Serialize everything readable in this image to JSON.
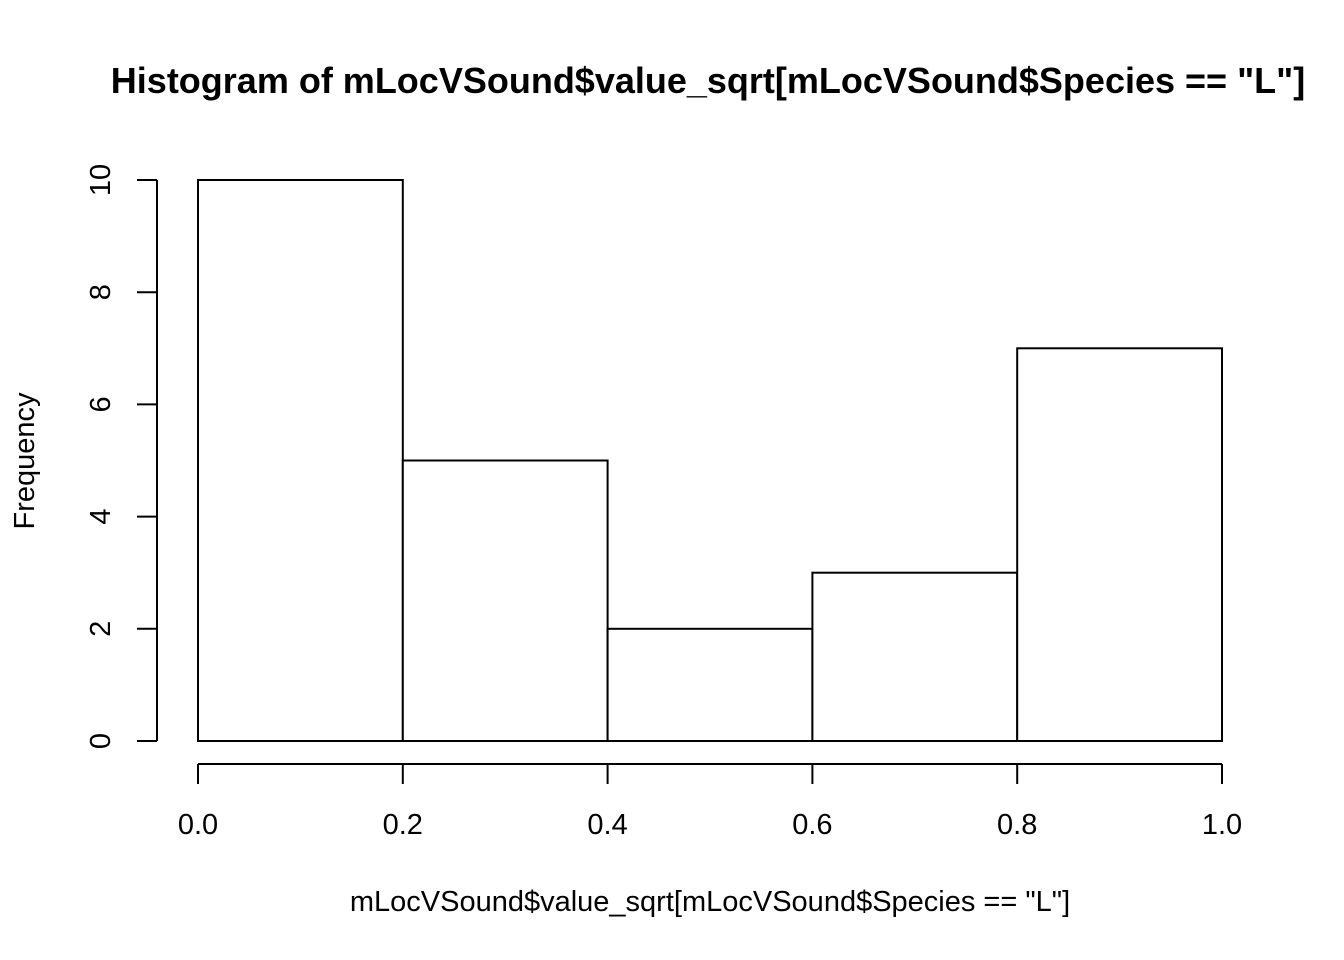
{
  "chart_data": {
    "type": "bar",
    "title": "Histogram of mLocVSound$value_sqrt[mLocVSound$Species == \"L\"]",
    "xlabel": "mLocVSound$value_sqrt[mLocVSound$Species == \"L\"]",
    "ylabel": "Frequency",
    "bins": [
      {
        "start": 0.0,
        "end": 0.2,
        "count": 10
      },
      {
        "start": 0.2,
        "end": 0.4,
        "count": 5
      },
      {
        "start": 0.4,
        "end": 0.6,
        "count": 2
      },
      {
        "start": 0.6,
        "end": 0.8,
        "count": 3
      },
      {
        "start": 0.8,
        "end": 1.0,
        "count": 7
      }
    ],
    "xlim": [
      0.0,
      1.0
    ],
    "ylim": [
      0,
      10
    ],
    "x_ticks": [
      "0.0",
      "0.2",
      "0.4",
      "0.6",
      "0.8",
      "1.0"
    ],
    "y_ticks": [
      "0",
      "2",
      "4",
      "6",
      "8",
      "10"
    ],
    "grid": false,
    "bar_fill": "#ffffff",
    "bar_stroke": "#000000"
  }
}
